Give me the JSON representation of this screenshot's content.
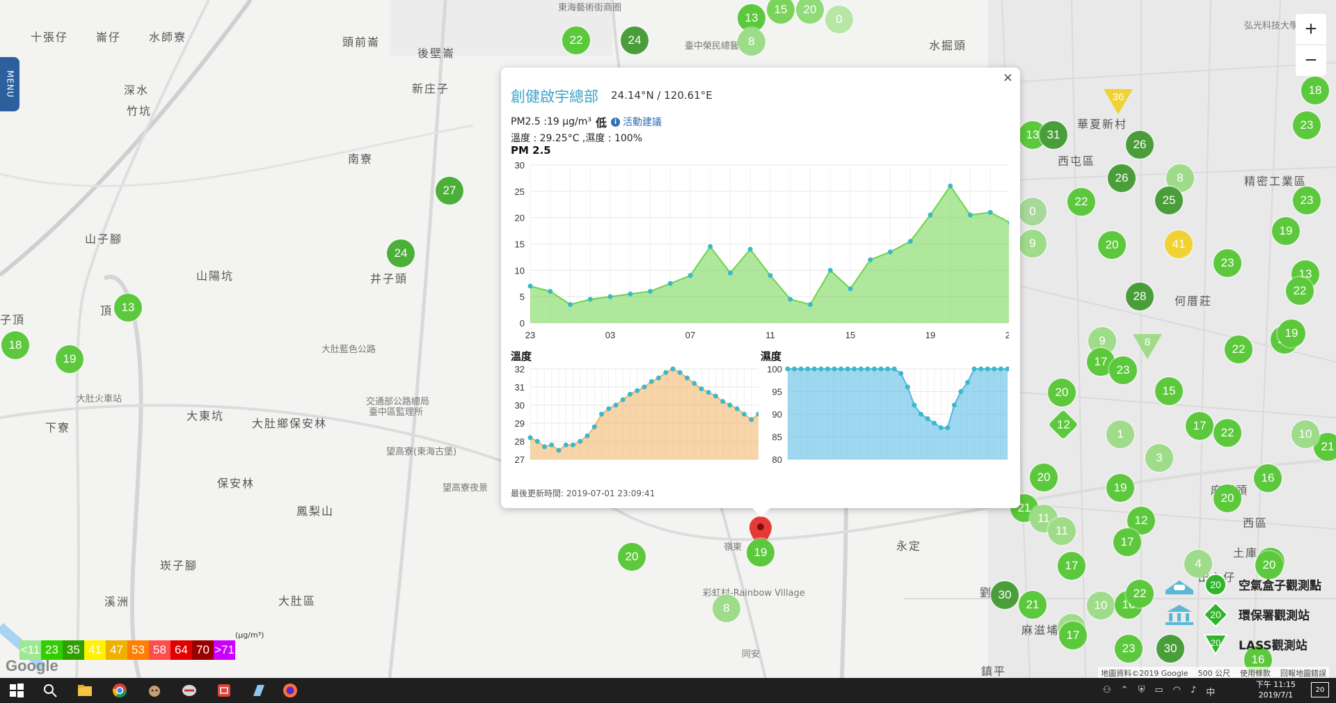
{
  "menu": {
    "label": "MENU"
  },
  "zoom": {
    "in_label": "+",
    "out_label": "−"
  },
  "places": [
    {
      "id": "p1",
      "text": "十張仔"
    },
    {
      "id": "p2",
      "text": "崙仔"
    },
    {
      "id": "p3",
      "text": "水師寮"
    },
    {
      "id": "p4",
      "text": "頭前崙"
    },
    {
      "id": "p5",
      "text": "後壁崙"
    },
    {
      "id": "p6",
      "text": "新庄子"
    },
    {
      "id": "p7",
      "text": "深水"
    },
    {
      "id": "p8",
      "text": "竹坑"
    },
    {
      "id": "p9",
      "text": "南寮"
    },
    {
      "id": "p10",
      "text": "山子腳"
    },
    {
      "id": "p11",
      "text": "山陽坑"
    },
    {
      "id": "p12",
      "text": "井子頭"
    },
    {
      "id": "p13",
      "text": "大肚藍色公路"
    },
    {
      "id": "p14",
      "text": "交通部公路總局"
    },
    {
      "id": "p15",
      "text": "臺中區監理所"
    },
    {
      "id": "p16",
      "text": "大肚火車站"
    },
    {
      "id": "p17",
      "text": "大東坑"
    },
    {
      "id": "p18",
      "text": "大肚鄉保安林"
    },
    {
      "id": "p19",
      "text": "下寮"
    },
    {
      "id": "p20",
      "text": "望高寮(東海古堡)"
    },
    {
      "id": "p21",
      "text": "保安林"
    },
    {
      "id": "p22",
      "text": "望高寮夜景"
    },
    {
      "id": "p23",
      "text": "鳳梨山"
    },
    {
      "id": "p24",
      "text": "崁子腳"
    },
    {
      "id": "p25",
      "text": "溪洲"
    },
    {
      "id": "p26",
      "text": "大肚區"
    },
    {
      "id": "p27",
      "text": "彩虹村-Rainbow Village"
    },
    {
      "id": "p28",
      "text": "永定"
    },
    {
      "id": "p29",
      "text": "劉厝"
    },
    {
      "id": "p30",
      "text": "西屯區"
    },
    {
      "id": "p31",
      "text": "華夏新村"
    },
    {
      "id": "p32",
      "text": "水掘頭"
    },
    {
      "id": "p33",
      "text": "何厝莊"
    },
    {
      "id": "p34",
      "text": "麻園頭"
    },
    {
      "id": "p35",
      "text": "西區"
    },
    {
      "id": "p36",
      "text": "土庫"
    },
    {
      "id": "p37",
      "text": "田心仔"
    },
    {
      "id": "p38",
      "text": "麻滋埔"
    },
    {
      "id": "p39",
      "text": "鎮平"
    },
    {
      "id": "p40",
      "text": "頂"
    },
    {
      "id": "p41",
      "text": "子頂"
    },
    {
      "id": "p42",
      "text": "嶺東"
    },
    {
      "id": "p43",
      "text": "同安"
    },
    {
      "id": "p44",
      "text": "東海藝術街商圈"
    },
    {
      "id": "p45",
      "text": "精密工業區"
    },
    {
      "id": "p46",
      "text": "臺中榮民總醫院"
    },
    {
      "id": "p47",
      "text": "弘光科技大學"
    }
  ],
  "markers": [
    {
      "v": "13",
      "c": "#5cc83b"
    },
    {
      "v": "15",
      "c": "#7ad35a"
    },
    {
      "v": "20",
      "c": "#8fdb77"
    },
    {
      "v": "0",
      "c": "#b8e6a6"
    },
    {
      "v": "22",
      "c": "#5cc83b"
    },
    {
      "v": "24",
      "c": "#4a9e3a"
    },
    {
      "v": "8",
      "c": "#9fdc8a"
    },
    {
      "v": "27",
      "c": "#4caf3a"
    },
    {
      "v": "24",
      "c": "#4caf3a"
    },
    {
      "v": "13",
      "c": "#5cc83b"
    },
    {
      "v": "18",
      "c": "#5cc83b"
    },
    {
      "v": "19",
      "c": "#5cc83b"
    },
    {
      "v": "13",
      "c": "#5cc83b"
    },
    {
      "v": "31",
      "c": "#4a9e3a"
    },
    {
      "v": "26",
      "c": "#4a9e3a"
    },
    {
      "v": "26",
      "c": "#4a9e3a"
    },
    {
      "v": "8",
      "c": "#9fdc8a"
    },
    {
      "v": "25",
      "c": "#4a9e3a"
    },
    {
      "v": "22",
      "c": "#5cc83b"
    },
    {
      "v": "0",
      "c": "#a6d99a"
    },
    {
      "v": "9",
      "c": "#9fdc8a"
    },
    {
      "v": "20",
      "c": "#5cc83b"
    },
    {
      "v": "41",
      "c": "#f0d233"
    },
    {
      "v": "23",
      "c": "#5cc83b"
    },
    {
      "v": "19",
      "c": "#5cc83b"
    },
    {
      "v": "13",
      "c": "#5cc83b"
    },
    {
      "v": "28",
      "c": "#4a9e3a"
    },
    {
      "v": "9",
      "c": "#9fdc8a"
    },
    {
      "v": "17",
      "c": "#5cc83b"
    },
    {
      "v": "23",
      "c": "#5cc83b"
    },
    {
      "v": "22",
      "c": "#5cc83b"
    },
    {
      "v": "22",
      "c": "#5cc83b"
    },
    {
      "v": "20",
      "c": "#5cc83b"
    },
    {
      "v": "15",
      "c": "#5cc83b"
    },
    {
      "v": "17",
      "c": "#5cc83b"
    },
    {
      "v": "22",
      "c": "#5cc83b"
    },
    {
      "v": "1",
      "c": "#9fdc8a"
    },
    {
      "v": "3",
      "c": "#9fdc8a"
    },
    {
      "v": "20",
      "c": "#5cc83b"
    },
    {
      "v": "19",
      "c": "#5cc83b"
    },
    {
      "v": "16",
      "c": "#5cc83b"
    },
    {
      "v": "20",
      "c": "#5cc83b"
    },
    {
      "v": "21",
      "c": "#5cc83b"
    },
    {
      "v": "11",
      "c": "#9fdc8a"
    },
    {
      "v": "11",
      "c": "#9fdc8a"
    },
    {
      "v": "12",
      "c": "#5cc83b"
    },
    {
      "v": "17",
      "c": "#5cc83b"
    },
    {
      "v": "20",
      "c": "#5cc83b"
    },
    {
      "v": "17",
      "c": "#5cc83b"
    },
    {
      "v": "30",
      "c": "#4a9e3a"
    },
    {
      "v": "21",
      "c": "#5cc83b"
    },
    {
      "v": "10",
      "c": "#9fdc8a"
    },
    {
      "v": "16",
      "c": "#5cc83b"
    },
    {
      "v": "22",
      "c": "#5cc83b"
    },
    {
      "v": "5",
      "c": "#9fdc8a"
    },
    {
      "v": "23",
      "c": "#5cc83b"
    },
    {
      "v": "30",
      "c": "#4a9e3a"
    },
    {
      "v": "16",
      "c": "#5cc83b"
    },
    {
      "v": "20",
      "c": "#5cc83b"
    },
    {
      "v": "17",
      "c": "#5cc83b"
    },
    {
      "v": "22",
      "c": "#5cc83b"
    },
    {
      "v": "19",
      "c": "#5cc83b"
    },
    {
      "v": "23",
      "c": "#5cc83b"
    },
    {
      "v": "18",
      "c": "#5cc83b"
    },
    {
      "v": "4",
      "c": "#9fdc8a"
    },
    {
      "v": "21",
      "c": "#5cc83b"
    },
    {
      "v": "10",
      "c": "#9fdc8a"
    },
    {
      "v": "23",
      "c": "#5cc83b"
    },
    {
      "v": "20",
      "c": "#5cc83b"
    },
    {
      "v": "8",
      "c": "#9fdc8a"
    }
  ],
  "triangles": [
    {
      "v": "36",
      "c": "#f0d233"
    },
    {
      "v": "8",
      "c": "#9fdc8a"
    }
  ],
  "diamonds": [
    {
      "v": "12",
      "c": "#5cc83b"
    }
  ],
  "legend": {
    "unit": "(μg/m³)",
    "cells": [
      {
        "label": "<11",
        "color": "#9ce893"
      },
      {
        "label": "23",
        "color": "#31cf00"
      },
      {
        "label": "35",
        "color": "#2ea000"
      },
      {
        "label": "41",
        "color": "#fff100"
      },
      {
        "label": "47",
        "color": "#f0b000"
      },
      {
        "label": "53",
        "color": "#ff7f00"
      },
      {
        "label": "58",
        "color": "#ff4c4c"
      },
      {
        "label": "64",
        "color": "#e00000"
      },
      {
        "label": "70",
        "color": "#990000"
      },
      {
        "label": ">71",
        "color": "#cc00ff"
      }
    ]
  },
  "station_legend": {
    "airbox": {
      "label": "空氣盒子觀測點",
      "value": "20"
    },
    "epa": {
      "label": "環保署觀測站",
      "value": "20"
    },
    "lass": {
      "label": "LASS觀測站",
      "value": "20"
    }
  },
  "attribution": {
    "logo": "Google",
    "data": "地圖資料©2019 Google",
    "scale": "500 公尺",
    "terms": "使用條款",
    "report": "回報地圖錯誤"
  },
  "popup": {
    "title": "創健啟宇總部",
    "coords": "24.14°N / 120.61°E",
    "pm_text": "PM2.5 :19 μg/m³",
    "pm_level": "低",
    "advice": "活動建議",
    "temp_text": "溫度 : 29.25°C ,濕度 : 100%",
    "pm_chart_title": "PM 2.5",
    "temp_chart_title": "溫度",
    "hum_chart_title": "濕度",
    "updated": "最後更新時間: 2019-07-01 23:09:41",
    "close": "×"
  },
  "pin_marker": {
    "v": "19",
    "c": "#5cc83b"
  },
  "chart_data": [
    {
      "type": "area",
      "title": "PM 2.5",
      "x": [
        "23",
        "00",
        "01",
        "02",
        "03",
        "04",
        "05",
        "06",
        "07",
        "08",
        "09",
        "10",
        "11",
        "12",
        "13",
        "14",
        "15",
        "16",
        "17",
        "18",
        "19",
        "20",
        "21",
        "22",
        "23"
      ],
      "xticks": [
        "23",
        "03",
        "07",
        "11",
        "15",
        "19",
        "23"
      ],
      "values": [
        7,
        6,
        3.5,
        4.5,
        5,
        5.5,
        6,
        7.5,
        9,
        14.5,
        9.5,
        14,
        9,
        4.5,
        3.5,
        10,
        6.5,
        12,
        13.5,
        15.5,
        20.5,
        26,
        20.5,
        21,
        19
      ],
      "ylim": [
        0,
        30
      ],
      "yticks": [
        0,
        5,
        10,
        15,
        20,
        25,
        30
      ],
      "color": "#6dd34a"
    },
    {
      "type": "area",
      "title": "溫度",
      "values": [
        28.2,
        28,
        27.7,
        27.8,
        27.5,
        27.8,
        27.8,
        28,
        28.3,
        28.8,
        29.5,
        29.8,
        30,
        30.3,
        30.6,
        30.8,
        31,
        31.3,
        31.5,
        31.8,
        32,
        31.8,
        31.5,
        31.2,
        30.9,
        30.7,
        30.5,
        30.2,
        30,
        29.8,
        29.5,
        29.2,
        29.5
      ],
      "ylim": [
        27,
        32
      ],
      "yticks": [
        27,
        28,
        29,
        30,
        31,
        32
      ],
      "color": "#f2b063"
    },
    {
      "type": "area",
      "title": "濕度",
      "values": [
        100,
        100,
        100,
        100,
        100,
        100,
        100,
        100,
        100,
        100,
        100,
        100,
        100,
        100,
        100,
        100,
        100,
        99,
        96,
        92,
        90,
        89,
        88,
        87,
        87,
        92,
        95,
        97,
        100,
        100,
        100,
        100,
        100,
        100
      ],
      "ylim": [
        80,
        100
      ],
      "yticks": [
        80,
        85,
        90,
        95,
        100
      ],
      "color": "#4fb6e4"
    }
  ],
  "taskbar": {
    "time": "下午 11:15",
    "date": "2019/7/1",
    "ime": "中",
    "notifications": "20"
  }
}
